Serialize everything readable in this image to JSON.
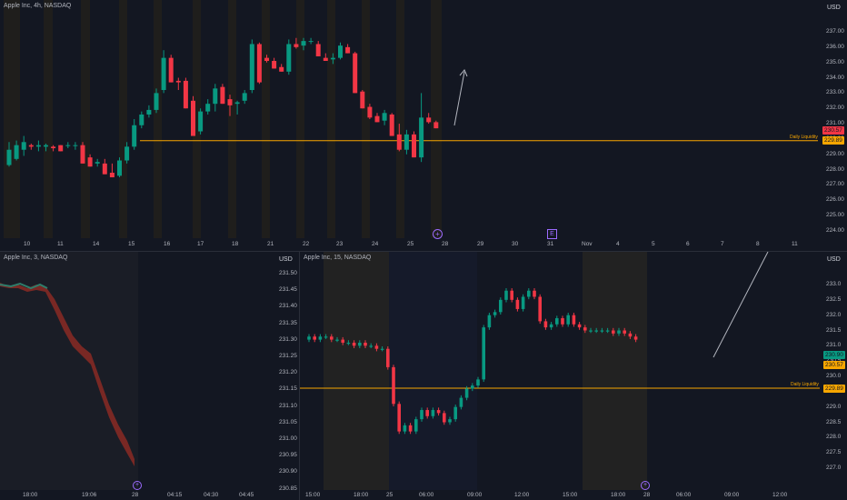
{
  "colors": {
    "background": "#131722",
    "up": "#089981",
    "down": "#f23645",
    "liquidity": "#f7a600",
    "grid_text": "#b2b5be",
    "session_shade": "#2a2a2a"
  },
  "top": {
    "title": "Apple Inc, 4h, NASDAQ",
    "currency": "USD",
    "price_ticks": [
      "237.00",
      "236.00",
      "235.00",
      "234.00",
      "233.00",
      "232.00",
      "231.00",
      "230.00",
      "229.00",
      "228.00",
      "227.00",
      "226.00",
      "225.00",
      "224.00"
    ],
    "last_price": "230.57",
    "liquidity_price": "229.89",
    "liquidity_label": "Daily Liquidity",
    "time_ticks": [
      "10",
      "11",
      "14",
      "15",
      "16",
      "17",
      "18",
      "21",
      "22",
      "23",
      "24",
      "25",
      "28",
      "29",
      "30",
      "31",
      "Nov",
      "4",
      "5",
      "6",
      "7",
      "8",
      "11"
    ],
    "event_markers": [
      "+",
      "E"
    ],
    "candles": [
      [
        0,
        228.3,
        228.2,
        229.3,
        229.8
      ],
      [
        1,
        228.7,
        228.6,
        229.6,
        229.9
      ],
      [
        2,
        229.3,
        228.9,
        229.8,
        230.2
      ],
      [
        3,
        229.6,
        229.3,
        229.5,
        229.7
      ],
      [
        4,
        229.5,
        229.2,
        229.6,
        229.9
      ],
      [
        5,
        229.5,
        229.2,
        229.6,
        229.7
      ],
      [
        6,
        229.5,
        229.2,
        229.4,
        229.6
      ],
      [
        7,
        229.6,
        229.4,
        229.2,
        229.6
      ],
      [
        8,
        229.6,
        229.4,
        229.6,
        229.8
      ],
      [
        9,
        229.6,
        229.3,
        229.6,
        229.8
      ],
      [
        10,
        229.6,
        228.6,
        228.4,
        229.8
      ],
      [
        11,
        228.8,
        228.4,
        228.2,
        229.0
      ],
      [
        12,
        228.4,
        228.2,
        228.5,
        228.7
      ],
      [
        13,
        228.4,
        227.9,
        227.7,
        228.7
      ],
      [
        14,
        227.8,
        227.6,
        227.5,
        228.4
      ],
      [
        15,
        227.6,
        227.5,
        228.6,
        228.8
      ],
      [
        16,
        228.6,
        228.4,
        229.5,
        229.8
      ],
      [
        17,
        229.5,
        229.3,
        230.9,
        231.3
      ],
      [
        18,
        230.9,
        230.7,
        231.6,
        231.8
      ],
      [
        19,
        231.6,
        231.4,
        231.9,
        232.2
      ],
      [
        20,
        231.9,
        231.7,
        233.0,
        233.3
      ],
      [
        21,
        233.2,
        233.0,
        235.3,
        235.8
      ],
      [
        22,
        235.3,
        234.0,
        233.7,
        235.5
      ],
      [
        23,
        233.8,
        233.2,
        233.7,
        234.0
      ],
      [
        24,
        233.8,
        232.4,
        232.0,
        234.0
      ],
      [
        25,
        232.5,
        230.4,
        230.2,
        232.8
      ],
      [
        26,
        230.5,
        230.3,
        231.8,
        232.0
      ],
      [
        27,
        231.8,
        231.6,
        232.3,
        232.6
      ],
      [
        28,
        232.3,
        231.8,
        233.3,
        233.6
      ],
      [
        29,
        233.4,
        232.5,
        232.3,
        233.6
      ],
      [
        30,
        232.6,
        231.5,
        232.2,
        232.9
      ],
      [
        31,
        232.3,
        231.6,
        232.4,
        232.5
      ],
      [
        32,
        232.5,
        232.3,
        233.0,
        233.2
      ],
      [
        33,
        233.2,
        233.0,
        236.2,
        236.5
      ],
      [
        34,
        236.2,
        233.6,
        233.7,
        236.3
      ],
      [
        35,
        235.3,
        235.0,
        235.1,
        235.5
      ],
      [
        36,
        235.1,
        234.8,
        234.6,
        235.3
      ],
      [
        37,
        234.7,
        234.4,
        234.4,
        234.9
      ],
      [
        38,
        234.4,
        234.2,
        236.2,
        236.5
      ],
      [
        39,
        236.2,
        235.9,
        236.0,
        236.6
      ],
      [
        40,
        236.1,
        235.8,
        236.4,
        236.6
      ],
      [
        41,
        236.4,
        236.2,
        236.4,
        236.6
      ],
      [
        42,
        236.2,
        235.8,
        235.4,
        236.4
      ],
      [
        43,
        235.3,
        235.1,
        235.1,
        235.6
      ],
      [
        44,
        235.2,
        234.9,
        235.3,
        235.6
      ],
      [
        45,
        235.3,
        235.2,
        236.1,
        236.3
      ],
      [
        46,
        236.0,
        235.7,
        235.6,
        236.2
      ],
      [
        47,
        235.6,
        235.2,
        233.0,
        235.7
      ],
      [
        48,
        233.1,
        232.7,
        232.0,
        233.2
      ],
      [
        49,
        232.1,
        231.3,
        231.4,
        232.3
      ],
      [
        50,
        231.5,
        231.2,
        231.1,
        231.7
      ],
      [
        51,
        231.2,
        230.9,
        231.7,
        231.9
      ],
      [
        52,
        231.6,
        230.2,
        230.2,
        231.7
      ],
      [
        53,
        230.3,
        229.2,
        229.3,
        231.0
      ],
      [
        54,
        229.3,
        229.0,
        230.3,
        230.6
      ],
      [
        55,
        230.3,
        228.8,
        228.8,
        230.5
      ],
      [
        56,
        228.8,
        228.5,
        231.4,
        233.0
      ],
      [
        57,
        231.4,
        231.0,
        231.1,
        231.7
      ],
      [
        58,
        231.1,
        230.7,
        230.7,
        231.2
      ]
    ]
  },
  "bottom_left": {
    "title": "Apple Inc, 3, NASDAQ",
    "time_ticks": [
      "18:00",
      "19:06",
      "28",
      "04:15",
      "04:30",
      "04:45"
    ]
  },
  "bottom_right": {
    "title": "Apple Inc, 15, NASDAQ",
    "currency": "USD",
    "left_ticks": [
      "231.50",
      "231.45",
      "231.40",
      "231.35",
      "231.30",
      "231.25",
      "231.20",
      "231.15",
      "231.10",
      "231.05",
      "231.00",
      "230.95",
      "230.90",
      "230.85"
    ],
    "right_ticks": [
      "233.0",
      "232.5",
      "232.0",
      "231.5",
      "231.0",
      "230.5",
      "230.0",
      "229.5",
      "229.0",
      "228.5",
      "228.0",
      "227.5",
      "227.0"
    ],
    "time_ticks": [
      "15:00",
      "18:00",
      "25",
      "06:00",
      "09:00",
      "12:00",
      "15:00",
      "18:00",
      "28",
      "06:00",
      "09:00",
      "12:00"
    ],
    "price_box_current": "230.90",
    "last_price": "230.57",
    "liquidity_price": "229.89",
    "liquidity_label": "Daily Liquidity"
  }
}
